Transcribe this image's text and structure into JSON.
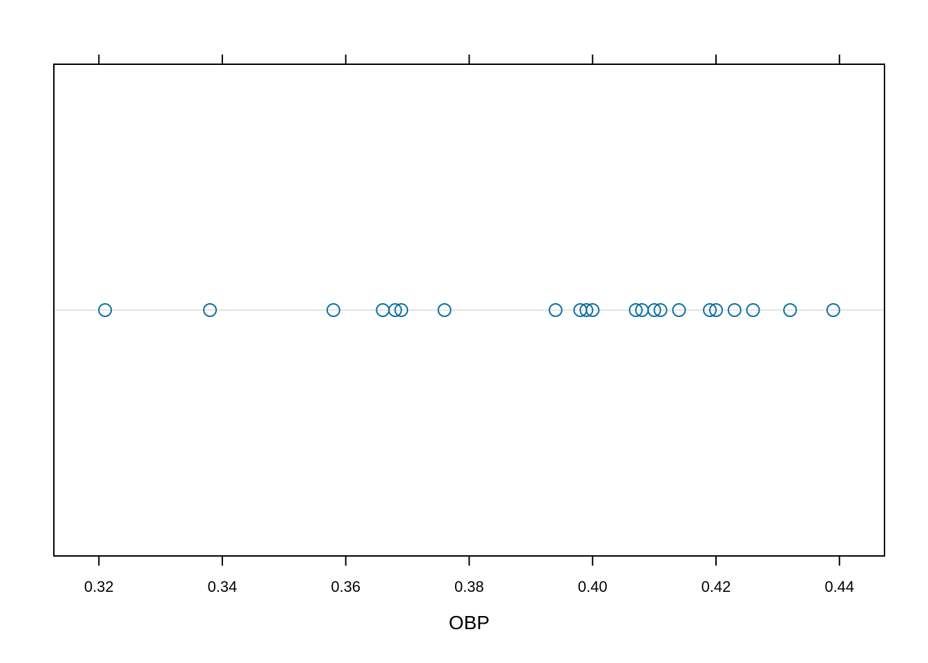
{
  "chart_data": {
    "type": "scatter",
    "title": "",
    "xlabel": "OBP",
    "ylabel": "",
    "xlim": [
      0.3127,
      0.4473
    ],
    "x_ticks": [
      "0.32",
      "0.34",
      "0.36",
      "0.38",
      "0.40",
      "0.42",
      "0.44"
    ],
    "x_tick_values": [
      0.32,
      0.34,
      0.36,
      0.38,
      0.4,
      0.42,
      0.44
    ],
    "x": [
      0.321,
      0.338,
      0.358,
      0.366,
      0.368,
      0.369,
      0.376,
      0.394,
      0.398,
      0.399,
      0.4,
      0.407,
      0.408,
      0.41,
      0.411,
      0.414,
      0.419,
      0.42,
      0.423,
      0.426,
      0.432,
      0.439
    ],
    "reference_line": true,
    "grid": false,
    "colors": {
      "point": "#0a6fa0",
      "reference_line": "#e3e3e3",
      "frame": "#000000"
    }
  }
}
